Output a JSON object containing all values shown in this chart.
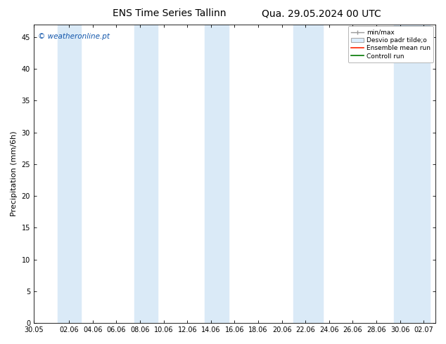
{
  "title_left": "ENS Time Series Tallinn",
  "title_right": "Qua. 29.05.2024 00 UTC",
  "ylabel": "Precipitation (mm/6h)",
  "ylim": [
    0,
    47
  ],
  "yticks": [
    0,
    5,
    10,
    15,
    20,
    25,
    30,
    35,
    40,
    45
  ],
  "xtick_labels": [
    "30.05",
    "02.06",
    "04.06",
    "06.06",
    "08.06",
    "10.06",
    "12.06",
    "14.06",
    "16.06",
    "18.06",
    "20.06",
    "22.06",
    "24.06",
    "26.06",
    "28.06",
    "30.06",
    "02.07"
  ],
  "xtick_positions": [
    0,
    3,
    5,
    7,
    9,
    11,
    13,
    15,
    17,
    19,
    21,
    23,
    25,
    27,
    29,
    31,
    33
  ],
  "shaded_bands": [
    [
      2.0,
      4.0
    ],
    [
      8.5,
      10.5
    ],
    [
      14.5,
      16.5
    ],
    [
      22.0,
      24.5
    ],
    [
      30.5,
      33.5
    ]
  ],
  "band_color": "#daeaf7",
  "background_color": "#ffffff",
  "plot_bg_color": "#ffffff",
  "watermark": "© weatheronline.pt",
  "legend_labels": [
    "min/max",
    "Desvio padr tilde;o",
    "Ensemble mean run",
    "Controll run"
  ],
  "title_fontsize": 10,
  "tick_fontsize": 7,
  "ylabel_fontsize": 8,
  "xmin": 0,
  "xmax": 34
}
